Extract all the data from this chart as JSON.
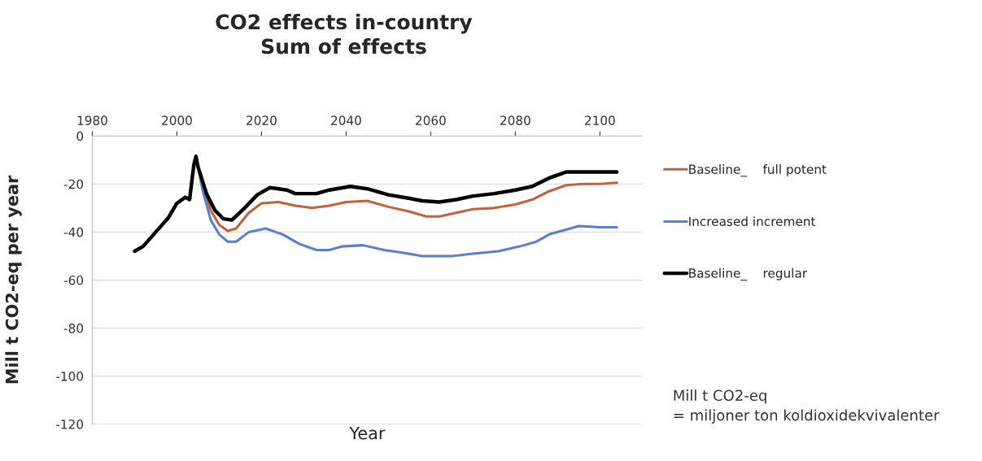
{
  "chart_data": {
    "type": "line",
    "title": "CO2 effects in-country\nSum of effects",
    "xlabel": "Year",
    "ylabel": "Mill t CO2-eq per year",
    "xlim": [
      1980,
      2110
    ],
    "xticks": [
      1980,
      2000,
      2020,
      2040,
      2060,
      2080,
      2100
    ],
    "ylim": [
      -120,
      0
    ],
    "yticks": [
      0,
      -20,
      -40,
      -60,
      -80,
      -100,
      -120
    ],
    "grid": "y",
    "legend": "right",
    "marker": "none",
    "line_style": "solid",
    "annotations": [
      "Mill t CO2-eq\n= miljoner ton koldioxidekvivalenter"
    ],
    "series": [
      {
        "name": "Baseline_    full potent",
        "color": "#c0623a",
        "x": [
          2004.5,
          2006,
          2008,
          2010,
          2012,
          2014,
          2017,
          2020,
          2024,
          2028,
          2032,
          2036,
          2040,
          2045,
          2050,
          2055,
          2059,
          2062,
          2066,
          2070,
          2075,
          2080,
          2084,
          2088,
          2092,
          2096,
          2100,
          2104
        ],
        "values": [
          -8.5,
          -20,
          -31,
          -37,
          -39.5,
          -38.5,
          -32,
          -28,
          -27.5,
          -29,
          -30,
          -29,
          -27.5,
          -27,
          -29.5,
          -31.5,
          -33.5,
          -33.5,
          -32,
          -30.5,
          -30,
          -28.5,
          -26.5,
          -23,
          -20.5,
          -20,
          -20,
          -19.5
        ]
      },
      {
        "name": "Increased increment",
        "color": "#5b7fcf",
        "x": [
          2004.5,
          2006,
          2008,
          2010,
          2012,
          2014,
          2017,
          2021,
          2025,
          2029,
          2033,
          2036,
          2039,
          2044,
          2049,
          2053,
          2058,
          2065,
          2070,
          2076,
          2081,
          2085,
          2088,
          2092,
          2095,
          2100,
          2104
        ],
        "values": [
          -8.5,
          -22,
          -35,
          -41,
          -44,
          -44,
          -40,
          -38.5,
          -41,
          -45,
          -47.5,
          -47.5,
          -46,
          -45.5,
          -47.5,
          -48.5,
          -50,
          -50,
          -49,
          -48,
          -46,
          -44,
          -41,
          -39,
          -37.5,
          -38,
          -38
        ]
      },
      {
        "name": "Baseline_    regular",
        "color": "#000000",
        "x": [
          1990,
          1992,
          1995,
          1998,
          2000,
          2002,
          2003,
          2004,
          2004.5,
          2005,
          2007,
          2009,
          2011,
          2013,
          2016,
          2019,
          2022,
          2026,
          2028,
          2033,
          2036,
          2041,
          2045,
          2050,
          2055,
          2058,
          2062,
          2066,
          2070,
          2075,
          2080,
          2084,
          2088,
          2092,
          2100,
          2104
        ],
        "values": [
          -48,
          -46,
          -40,
          -34,
          -28,
          -25.5,
          -26.5,
          -12,
          -8.5,
          -13,
          -24,
          -31,
          -34.5,
          -35,
          -30,
          -24.5,
          -21.5,
          -22.5,
          -24,
          -24,
          -22.5,
          -21,
          -22,
          -24.5,
          -26,
          -27,
          -27.5,
          -26.5,
          -25,
          -24,
          -22.5,
          -21,
          -17.5,
          -15,
          -15,
          -15
        ]
      }
    ]
  }
}
